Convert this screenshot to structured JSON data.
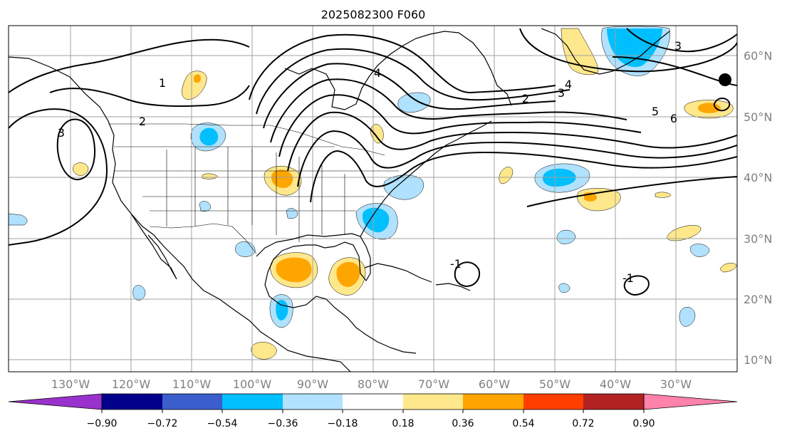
{
  "title": "2025082300 F060",
  "map": {
    "lon_labels": [
      "130°W",
      "120°W",
      "110°W",
      "100°W",
      "90°W",
      "80°W",
      "70°W",
      "60°W",
      "50°W",
      "40°W",
      "30°W"
    ],
    "lat_labels": [
      "60°N",
      "50°N",
      "40°N",
      "30°N",
      "20°N",
      "10°N"
    ],
    "contour_labels": [
      "1",
      "2",
      "3",
      "4",
      "2",
      "3",
      "4",
      "5",
      "6",
      "3",
      "-1",
      "-1"
    ]
  },
  "colorbar": {
    "tick_labels": [
      "−0.90",
      "−0.72",
      "−0.54",
      "−0.36",
      "−0.18",
      "0.18",
      "0.36",
      "0.54",
      "0.72",
      "0.90"
    ],
    "colors": {
      "below": "#9932cc",
      "bins": [
        "#00008b",
        "#3a5fcd",
        "#00bfff",
        "#b0e2ff",
        "#ffffff",
        "#ffe78b",
        "#ffa500",
        "#ff3e00",
        "#b22222"
      ],
      "above": "#ff82ab"
    }
  },
  "colors": {
    "contour": "#000000",
    "grid": "#a0a0a0",
    "coast": "#000000",
    "shade_light_blue": "#b0e2ff",
    "shade_blue": "#00bfff",
    "shade_yellow": "#ffe78b",
    "shade_orange": "#ffa500"
  }
}
